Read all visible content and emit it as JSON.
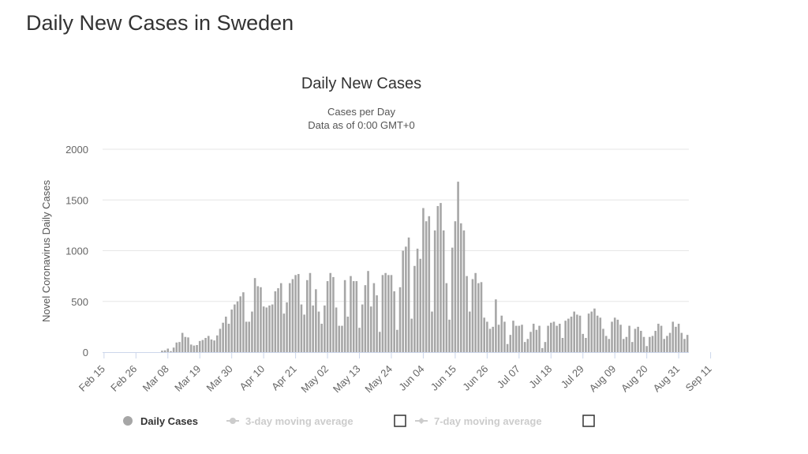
{
  "page": {
    "title": "Daily New Cases in Sweden"
  },
  "chart_data": {
    "type": "bar",
    "title": "Daily New Cases",
    "subtitles": [
      "Cases per Day",
      "Data as of 0:00 GMT+0"
    ],
    "ylabel": "Novel Coronavirus Daily Cases",
    "xlabel": "",
    "ylim": [
      0,
      2000
    ],
    "yticks": [
      0,
      500,
      1000,
      1500,
      2000
    ],
    "grid": true,
    "legend_position": "bottom",
    "x_start": "Feb 15",
    "x_tick_labels": [
      "Feb 15",
      "Feb 26",
      "Mar 08",
      "Mar 19",
      "Mar 30",
      "Apr 10",
      "Apr 21",
      "May 02",
      "May 13",
      "May 24",
      "Jun 04",
      "Jun 15",
      "Jun 26",
      "Jul 07",
      "Jul 18",
      "Jul 29",
      "Aug 09",
      "Aug 20",
      "Aug 31",
      "Sep 11"
    ],
    "x_tick_every": 11,
    "series": [
      {
        "name": "Daily Cases",
        "color": "#a6a6a6",
        "values": [
          0,
          0,
          0,
          0,
          0,
          0,
          0,
          0,
          0,
          0,
          0,
          0,
          0,
          0,
          0,
          0,
          0,
          0,
          0,
          0,
          15,
          18,
          35,
          10,
          45,
          95,
          100,
          190,
          150,
          145,
          75,
          65,
          70,
          110,
          120,
          140,
          160,
          125,
          115,
          165,
          230,
          290,
          350,
          280,
          420,
          470,
          500,
          550,
          590,
          300,
          300,
          400,
          730,
          650,
          640,
          450,
          440,
          460,
          470,
          600,
          630,
          680,
          380,
          490,
          680,
          720,
          760,
          770,
          470,
          370,
          710,
          780,
          460,
          620,
          400,
          280,
          460,
          700,
          780,
          740,
          440,
          260,
          260,
          710,
          350,
          750,
          700,
          700,
          240,
          470,
          660,
          800,
          450,
          680,
          560,
          200,
          760,
          780,
          760,
          760,
          600,
          220,
          640,
          1000,
          1040,
          1130,
          330,
          850,
          1020,
          920,
          1420,
          1290,
          1340,
          400,
          1200,
          1440,
          1470,
          1200,
          680,
          320,
          1030,
          1290,
          1680,
          1270,
          1200,
          750,
          400,
          720,
          780,
          680,
          690,
          340,
          300,
          230,
          250,
          520,
          270,
          360,
          300,
          80,
          170,
          310,
          260,
          260,
          270,
          100,
          130,
          200,
          280,
          220,
          260,
          40,
          100,
          260,
          290,
          300,
          260,
          280,
          140,
          310,
          330,
          350,
          400,
          370,
          360,
          180,
          140,
          380,
          400,
          430,
          360,
          340,
          230,
          160,
          130,
          300,
          340,
          320,
          270,
          130,
          150,
          260,
          100,
          230,
          250,
          210,
          150,
          60,
          150,
          160,
          210,
          280,
          260,
          130,
          160,
          190,
          300,
          250,
          280,
          190,
          130,
          170
        ]
      },
      {
        "name": "3-day moving average",
        "color": "#cccccc",
        "hidden": true
      },
      {
        "name": "7-day moving average",
        "color": "#cccccc",
        "hidden": true
      }
    ]
  }
}
